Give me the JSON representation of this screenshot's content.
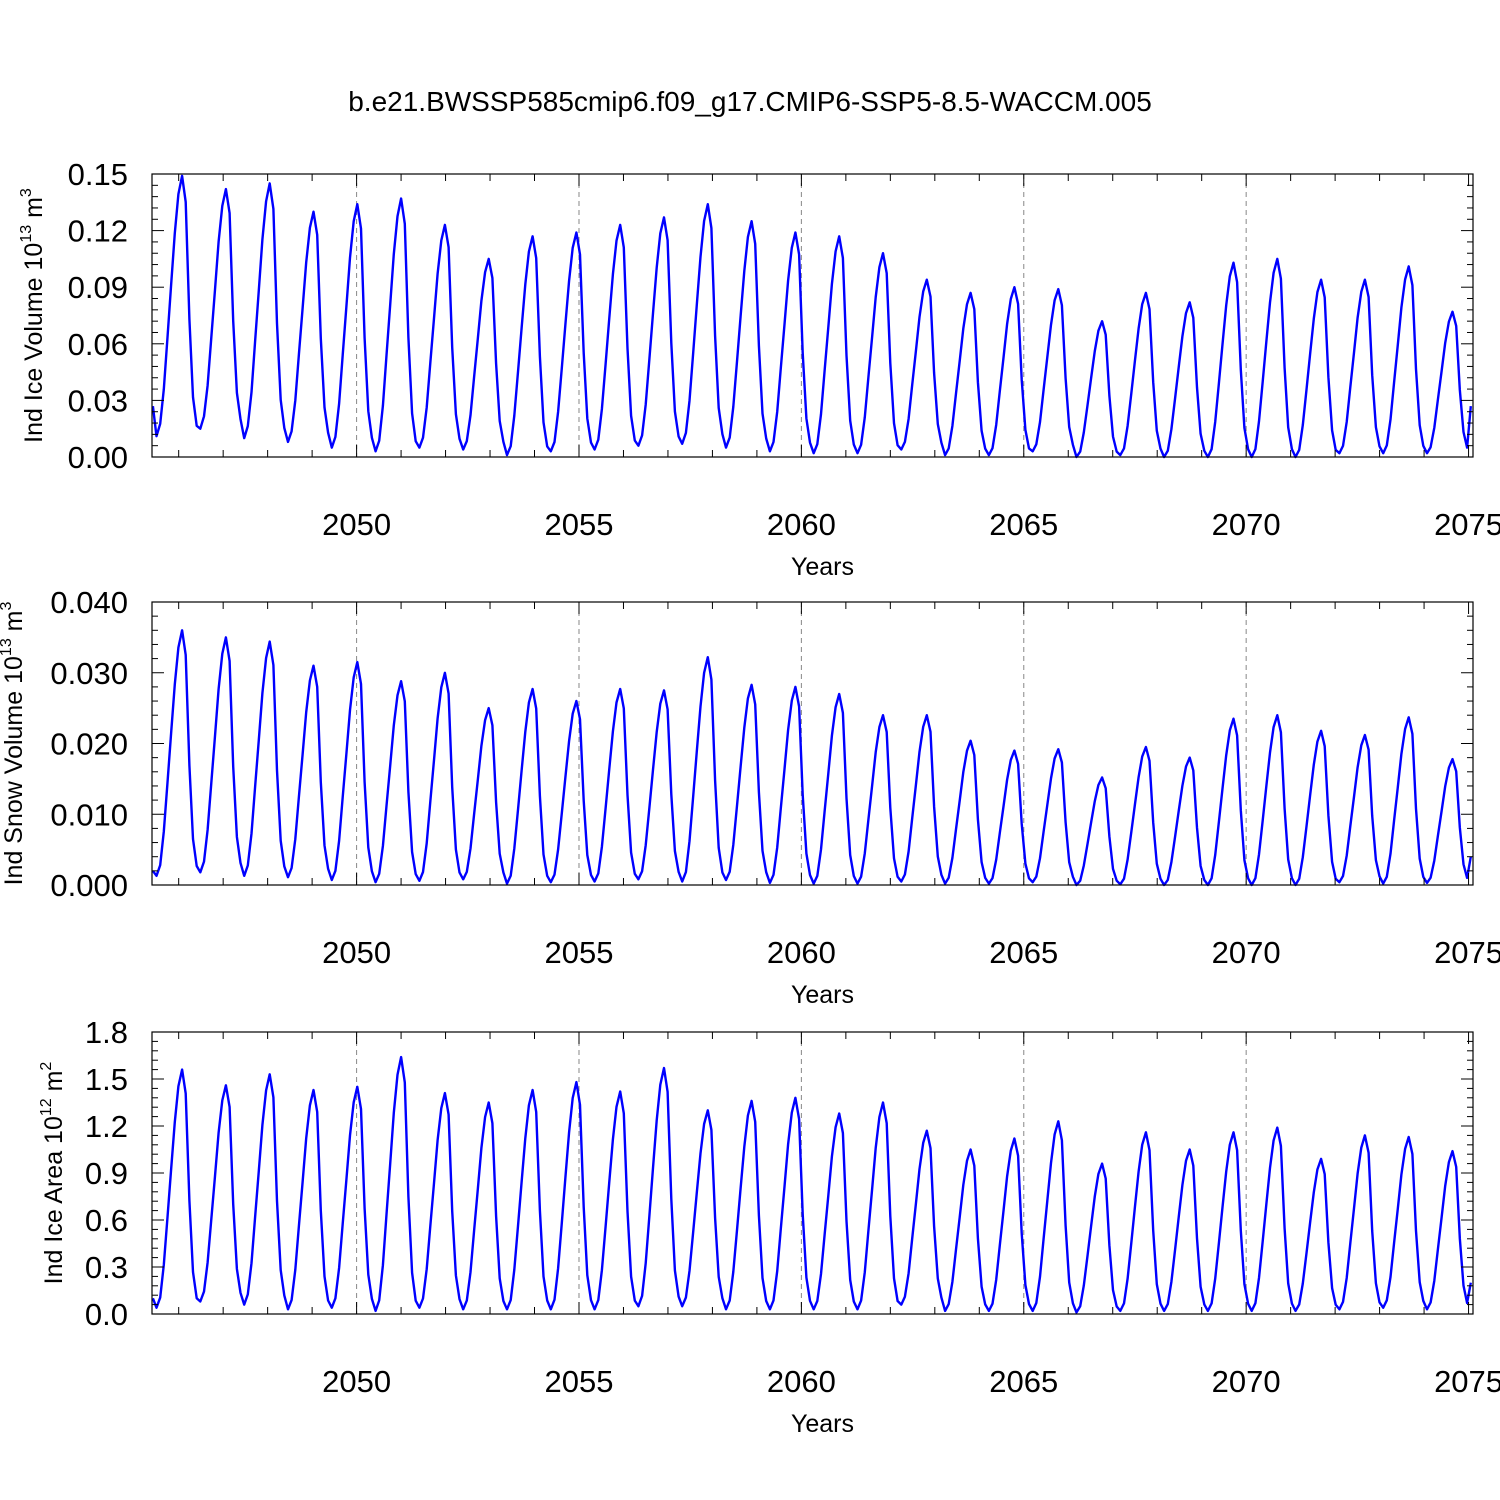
{
  "figure_title": "b.e21.BWSSP585cmip6.f09_g17.CMIP6-SSP5-8.5-WACCM.005",
  "colors": {
    "series": "#0000ff",
    "axes": "#000000",
    "grid": "#888888"
  },
  "chart_data": [
    {
      "type": "line",
      "name": "ice-volume",
      "ylabel_main": "Ind Ice Volume 10",
      "ylabel_sup": "13",
      "ylabel_unit": " m",
      "ylabel_unit_sup": "3",
      "xlabel": "Years",
      "xlim": [
        2045.4,
        2075.1
      ],
      "ylim": [
        0,
        0.15
      ],
      "yticks": [
        0,
        0.03,
        0.06,
        0.09,
        0.12,
        0.15
      ],
      "ytick_labels": [
        "0.00",
        "0.03",
        "0.06",
        "0.09",
        "0.12",
        "0.15"
      ],
      "xticks": [
        2050,
        2055,
        2060,
        2065,
        2070,
        2075
      ],
      "xtick_labels": [
        "2050",
        "2055",
        "2060",
        "2065",
        "2070",
        "2075"
      ],
      "grid_x": [
        2050,
        2055,
        2060,
        2065,
        2070
      ],
      "start_year": 2045.42,
      "step": 0.0833333,
      "peaks": [
        0.149,
        0.142,
        0.145,
        0.13,
        0.134,
        0.137,
        0.123,
        0.105,
        0.117,
        0.119,
        0.123,
        0.127,
        0.134,
        0.125,
        0.119,
        0.117,
        0.108,
        0.094,
        0.087,
        0.09,
        0.089,
        0.072,
        0.087,
        0.082,
        0.103,
        0.105,
        0.094,
        0.094,
        0.101,
        0.077
      ],
      "troughs": [
        0.011,
        0.015,
        0.01,
        0.008,
        0.005,
        0.003,
        0.005,
        0.004,
        0.001,
        0.003,
        0.004,
        0.006,
        0.007,
        0.005,
        0.003,
        0.002,
        0.002,
        0.004,
        0.001,
        0.001,
        0.003,
        0.0,
        0.001,
        0.0,
        0.0,
        0.0,
        0.0,
        0.002,
        0.002,
        0.002
      ],
      "first_value": 0.027,
      "last_value": 0.027
    },
    {
      "type": "line",
      "name": "snow-volume",
      "ylabel_main": "Ind Snow Volume 10",
      "ylabel_sup": "13",
      "ylabel_unit": " m",
      "ylabel_unit_sup": "3",
      "xlabel": "Years",
      "xlim": [
        2045.4,
        2075.1
      ],
      "ylim": [
        0,
        0.04
      ],
      "yticks": [
        0,
        0.01,
        0.02,
        0.03,
        0.04
      ],
      "ytick_labels": [
        "0.000",
        "0.010",
        "0.020",
        "0.030",
        "0.040"
      ],
      "xticks": [
        2050,
        2055,
        2060,
        2065,
        2070,
        2075
      ],
      "xtick_labels": [
        "2050",
        "2055",
        "2060",
        "2065",
        "2070",
        "2075"
      ],
      "grid_x": [
        2050,
        2055,
        2060,
        2065,
        2070
      ],
      "start_year": 2045.42,
      "step": 0.0833333,
      "peaks": [
        0.036,
        0.035,
        0.0344,
        0.031,
        0.0315,
        0.0288,
        0.03,
        0.025,
        0.0277,
        0.026,
        0.0277,
        0.0275,
        0.0322,
        0.0283,
        0.028,
        0.027,
        0.024,
        0.024,
        0.0204,
        0.019,
        0.0192,
        0.0152,
        0.0195,
        0.018,
        0.0235,
        0.024,
        0.0218,
        0.0212,
        0.0237,
        0.0178
      ],
      "troughs": [
        0.0013,
        0.0018,
        0.0013,
        0.0011,
        0.0007,
        0.0004,
        0.0006,
        0.0008,
        0.0002,
        0.0004,
        0.0005,
        0.0008,
        0.0005,
        0.0007,
        0.0003,
        0.0002,
        0.0002,
        0.0005,
        0.0002,
        0.0002,
        0.0004,
        0.0,
        0.0001,
        0.0,
        0.0,
        0.0,
        0.0,
        0.0004,
        0.0002,
        0.0003
      ],
      "first_value": 0.002,
      "last_value": 0.004
    },
    {
      "type": "line",
      "name": "ice-area",
      "ylabel_main": "Ind Ice Area 10",
      "ylabel_sup": "12",
      "ylabel_unit": " m",
      "ylabel_unit_sup": "2",
      "xlabel": "Years",
      "xlim": [
        2045.4,
        2075.1
      ],
      "ylim": [
        0,
        1.8
      ],
      "yticks": [
        0,
        0.3,
        0.6,
        0.9,
        1.2,
        1.5,
        1.8
      ],
      "ytick_labels": [
        "0.0",
        "0.3",
        "0.6",
        "0.9",
        "1.2",
        "1.5",
        "1.8"
      ],
      "xticks": [
        2050,
        2055,
        2060,
        2065,
        2070,
        2075
      ],
      "xtick_labels": [
        "2050",
        "2055",
        "2060",
        "2065",
        "2070",
        "2075"
      ],
      "grid_x": [
        2050,
        2055,
        2060,
        2065,
        2070
      ],
      "start_year": 2045.42,
      "step": 0.0833333,
      "peaks": [
        1.56,
        1.46,
        1.53,
        1.43,
        1.45,
        1.64,
        1.41,
        1.35,
        1.43,
        1.48,
        1.42,
        1.57,
        1.3,
        1.36,
        1.38,
        1.28,
        1.35,
        1.17,
        1.05,
        1.12,
        1.23,
        0.96,
        1.16,
        1.05,
        1.16,
        1.19,
        0.99,
        1.14,
        1.13,
        1.04
      ],
      "troughs": [
        0.04,
        0.08,
        0.06,
        0.03,
        0.04,
        0.02,
        0.04,
        0.03,
        0.03,
        0.03,
        0.03,
        0.05,
        0.05,
        0.03,
        0.03,
        0.03,
        0.03,
        0.06,
        0.02,
        0.02,
        0.02,
        0.01,
        0.02,
        0.02,
        0.02,
        0.02,
        0.02,
        0.03,
        0.04,
        0.03
      ],
      "first_value": 0.1,
      "last_value": 0.2
    }
  ]
}
